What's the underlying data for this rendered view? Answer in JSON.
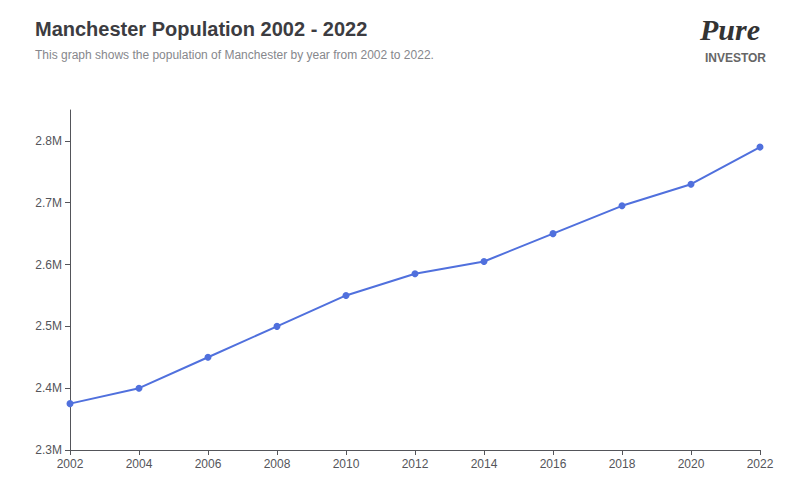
{
  "chart_data": {
    "type": "line",
    "title": "Manchester Population 2002 - 2022",
    "subtitle": "This graph shows the population of Manchester by year from 2002 to 2022.",
    "annotations": [
      "Pure",
      "INVESTOR"
    ],
    "x": [
      2002,
      2004,
      2006,
      2008,
      2010,
      2012,
      2014,
      2016,
      2018,
      2020,
      2022
    ],
    "values": [
      2375000,
      2400000,
      2450000,
      2500000,
      2550000,
      2585000,
      2605000,
      2650000,
      2695000,
      2730000,
      2790000
    ],
    "xlim": [
      2002,
      2022
    ],
    "ylim": [
      2300000,
      2850000
    ],
    "xticks": [
      2002,
      2004,
      2006,
      2008,
      2010,
      2012,
      2014,
      2016,
      2018,
      2020,
      2022
    ],
    "yticks": [
      {
        "value": 2300000,
        "label": "2.3M"
      },
      {
        "value": 2400000,
        "label": "2.4M"
      },
      {
        "value": 2500000,
        "label": "2.5M"
      },
      {
        "value": 2600000,
        "label": "2.6M"
      },
      {
        "value": 2700000,
        "label": "2.7M"
      },
      {
        "value": 2800000,
        "label": "2.8M"
      }
    ],
    "marker": "circle",
    "grid": false
  }
}
